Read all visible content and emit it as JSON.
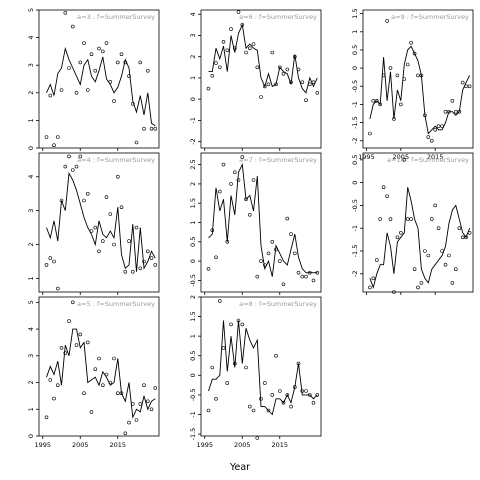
{
  "xlabel": "Year",
  "chart_data": [
    {
      "type": "line",
      "title": "a=3 : f=SummerSurvey",
      "ylim": [
        0,
        5
      ],
      "yticks": [
        0,
        1,
        2,
        3,
        4,
        5
      ],
      "xlim": [
        1994,
        2026
      ],
      "xticks": [
        1995,
        2005,
        2015
      ],
      "line": {
        "x": [
          1996,
          1997,
          1998,
          1999,
          2000,
          2001,
          2002,
          2003,
          2004,
          2005,
          2006,
          2007,
          2008,
          2009,
          2010,
          2011,
          2012,
          2013,
          2014,
          2015,
          2016,
          2017,
          2018,
          2019,
          2020,
          2021,
          2022,
          2023,
          2024,
          2025
        ],
        "y": [
          2.0,
          2.3,
          1.9,
          2.7,
          2.9,
          3.6,
          3.2,
          2.9,
          2.6,
          2.3,
          3.0,
          3.2,
          2.6,
          2.4,
          2.8,
          3.3,
          2.5,
          2.3,
          2.0,
          2.2,
          2.6,
          3.2,
          2.9,
          1.7,
          1.3,
          1.9,
          1.2,
          2.0,
          0.9,
          0.8
        ]
      },
      "points": {
        "x": [
          1996,
          1997,
          1998,
          1999,
          2000,
          2001,
          2002,
          2003,
          2004,
          2005,
          2006,
          2007,
          2008,
          2009,
          2010,
          2011,
          2012,
          2013,
          2014,
          2015,
          2016,
          2017,
          2018,
          2019,
          2020,
          2021,
          2022,
          2023,
          2024,
          2025
        ],
        "y": [
          0.4,
          1.9,
          0.1,
          0.4,
          2.1,
          4.9,
          2.9,
          4.4,
          2.0,
          3.1,
          3.8,
          2.1,
          3.4,
          2.8,
          3.6,
          3.5,
          3.8,
          2.4,
          1.7,
          3.1,
          3.4,
          3.1,
          2.6,
          1.6,
          0.2,
          3.1,
          0.7,
          2.8,
          0.7,
          0.7
        ]
      }
    },
    {
      "type": "line",
      "title": "a=6 : f=SummerSurvey",
      "ylim": [
        -2.3,
        4.2
      ],
      "yticks": [
        -2,
        -1,
        0,
        1,
        2,
        3,
        4
      ],
      "xlim": [
        1994,
        2026
      ],
      "xticks": [
        1995,
        2005,
        2015
      ],
      "line": {
        "x": [
          1996,
          1997,
          1998,
          1999,
          2000,
          2001,
          2002,
          2003,
          2004,
          2005,
          2006,
          2007,
          2008,
          2009,
          2010,
          2011,
          2012,
          2013,
          2014,
          2015,
          2016,
          2017,
          2018,
          2019,
          2020,
          2021,
          2022,
          2023,
          2024,
          2025
        ],
        "y": [
          1.3,
          1.3,
          2.4,
          1.9,
          2.5,
          1.3,
          3.0,
          2.2,
          3.1,
          3.5,
          2.4,
          2.6,
          2.4,
          2.3,
          1.0,
          0.6,
          1.2,
          0.6,
          0.7,
          1.5,
          1.3,
          1.2,
          0.7,
          2.1,
          1.0,
          0.5,
          0.3,
          1.0,
          0.6,
          1.0
        ]
      },
      "points": {
        "x": [
          1996,
          1997,
          1998,
          1999,
          2000,
          2001,
          2002,
          2003,
          2004,
          2005,
          2006,
          2007,
          2008,
          2009,
          2010,
          2011,
          2012,
          2013,
          2014,
          2015,
          2016,
          2017,
          2018,
          2019,
          2020,
          2021,
          2022,
          2023,
          2024,
          2025
        ],
        "y": [
          0.5,
          1.1,
          1.7,
          1.5,
          2.7,
          2.3,
          3.3,
          2.4,
          4.1,
          3.5,
          2.2,
          2.4,
          2.6,
          1.5,
          0.1,
          0.6,
          0.7,
          2.2,
          0.7,
          1.5,
          1.2,
          1.4,
          0.8,
          2.0,
          1.4,
          0.8,
          -0.05,
          0.7,
          0.8,
          0.3
        ]
      }
    },
    {
      "type": "line",
      "title": "a=9 : f=SummerSurvey",
      "ylim": [
        -2.2,
        1.6
      ],
      "yticks": [
        -2,
        -1.5,
        -1,
        -0.5,
        0,
        0.5,
        1,
        1.5
      ],
      "xlim": [
        1994,
        2026
      ],
      "xticks": [
        1995,
        2005,
        2015
      ],
      "line": {
        "x": [
          1996,
          1997,
          1998,
          1999,
          2000,
          2001,
          2002,
          2003,
          2004,
          2005,
          2006,
          2007,
          2008,
          2009,
          2010,
          2011,
          2012,
          2013,
          2014,
          2015,
          2016,
          2017,
          2018,
          2019,
          2020,
          2021,
          2022,
          2023,
          2024,
          2025
        ],
        "y": [
          -1.4,
          -1.0,
          -0.9,
          -1.0,
          0.3,
          -0.9,
          -0.1,
          -1.4,
          -0.6,
          -0.9,
          0.1,
          0.5,
          0.6,
          0.4,
          0.2,
          -0.2,
          -1.3,
          -1.8,
          -1.7,
          -1.6,
          -1.7,
          -1.7,
          -1.5,
          -1.2,
          -1.2,
          -1.3,
          -1.2,
          -0.6,
          -0.4,
          -0.2
        ]
      },
      "points": {
        "x": [
          1996,
          1997,
          1998,
          1999,
          2000,
          2001,
          2002,
          2003,
          2004,
          2005,
          2006,
          2007,
          2008,
          2009,
          2010,
          2011,
          2012,
          2013,
          2014,
          2015,
          2016,
          2017,
          2018,
          2019,
          2020,
          2021,
          2022,
          2023,
          2024,
          2025
        ],
        "y": [
          -1.8,
          -0.9,
          -0.9,
          -1.0,
          -0.2,
          1.3,
          0.0,
          -1.4,
          -0.2,
          -1.0,
          -0.3,
          0.1,
          0.7,
          0.4,
          -0.2,
          -0.2,
          -1.3,
          -1.9,
          -2.0,
          -1.7,
          -1.6,
          -1.6,
          -1.2,
          -1.2,
          -0.9,
          -1.2,
          -1.2,
          -0.4,
          -0.5,
          -0.5
        ]
      }
    },
    {
      "type": "line",
      "title": "a=4 : f=SummerSurvey",
      "ylim": [
        0.6,
        4.7
      ],
      "yticks": [
        1,
        2,
        3,
        4
      ],
      "xlim": [
        1994,
        2026
      ],
      "xticks": [
        1995,
        2005,
        2015
      ],
      "line": {
        "x": [
          1996,
          1997,
          1998,
          1999,
          2000,
          2001,
          2002,
          2003,
          2004,
          2005,
          2006,
          2007,
          2008,
          2009,
          2010,
          2011,
          2012,
          2013,
          2014,
          2015,
          2016,
          2017,
          2018,
          2019,
          2020,
          2021,
          2022,
          2023,
          2024,
          2025
        ],
        "y": [
          2.5,
          2.2,
          2.7,
          2.1,
          3.3,
          3.0,
          4.1,
          3.9,
          3.6,
          3.2,
          2.8,
          2.5,
          2.3,
          2.0,
          2.7,
          2.3,
          2.2,
          2.4,
          2.2,
          3.1,
          1.7,
          1.3,
          1.4,
          2.6,
          1.2,
          2.5,
          1.3,
          1.5,
          1.8,
          1.6
        ]
      },
      "points": {
        "x": [
          1996,
          1997,
          1998,
          1999,
          2000,
          2001,
          2002,
          2003,
          2004,
          2005,
          2006,
          2007,
          2008,
          2009,
          2010,
          2011,
          2012,
          2013,
          2014,
          2015,
          2016,
          2017,
          2018,
          2019,
          2020,
          2021,
          2022,
          2023,
          2024,
          2025
        ],
        "y": [
          1.4,
          1.6,
          1.5,
          0.7,
          3.3,
          4.3,
          4.6,
          4.2,
          4.3,
          4.6,
          3.3,
          3.5,
          2.4,
          2.5,
          1.8,
          2.1,
          3.4,
          2.9,
          2.0,
          4.0,
          3.1,
          1.2,
          2.1,
          1.2,
          2.5,
          1.3,
          1.5,
          1.8,
          1.6,
          1.4
        ]
      }
    },
    {
      "type": "line",
      "title": "a=7 : f=SummerSurvey",
      "ylim": [
        -0.8,
        2.8
      ],
      "yticks": [
        -0.5,
        0,
        0.5,
        1,
        1.5,
        2,
        2.5
      ],
      "xlim": [
        1994,
        2026
      ],
      "xticks": [
        1995,
        2005,
        2015
      ],
      "line": {
        "x": [
          1996,
          1997,
          1998,
          1999,
          2000,
          2001,
          2002,
          2003,
          2004,
          2005,
          2006,
          2007,
          2008,
          2009,
          2010,
          2011,
          2012,
          2013,
          2014,
          2015,
          2016,
          2017,
          2018,
          2019,
          2020,
          2021,
          2022,
          2023,
          2024,
          2025
        ],
        "y": [
          0.6,
          0.7,
          1.9,
          1.3,
          1.6,
          0.5,
          1.7,
          1.2,
          2.3,
          2.5,
          1.6,
          1.7,
          1.3,
          2.2,
          0.4,
          -0.2,
          0.0,
          -0.4,
          0.4,
          0.2,
          0.0,
          -0.1,
          0.3,
          0.7,
          0.1,
          -0.2,
          -0.3,
          -0.3,
          -0.3,
          -0.3
        ]
      },
      "points": {
        "x": [
          1996,
          1997,
          1998,
          1999,
          2000,
          2001,
          2002,
          2003,
          2004,
          2005,
          2006,
          2007,
          2008,
          2009,
          2010,
          2011,
          2012,
          2013,
          2014,
          2015,
          2016,
          2017,
          2018,
          2019,
          2020,
          2021,
          2022,
          2023,
          2024,
          2025
        ],
        "y": [
          -0.2,
          0.8,
          0.1,
          1.8,
          2.5,
          0.5,
          2.0,
          2.3,
          2.1,
          2.7,
          1.6,
          1.2,
          2.1,
          -0.4,
          0.0,
          -0.1,
          0.2,
          0.5,
          0.3,
          0.0,
          -0.6,
          1.1,
          0.7,
          0.2,
          -0.3,
          -0.4,
          -0.4,
          -0.3,
          -0.5,
          -0.3
        ]
      }
    },
    {
      "type": "line",
      "title": "a=10 : f=SummerSurvey",
      "ylim": [
        -2.4,
        0.65
      ],
      "yticks": [
        -2,
        -1.5,
        -1,
        -0.5,
        0,
        0.5
      ],
      "xlim": [
        1994,
        2026
      ],
      "xticks": [
        1995,
        2005,
        2015
      ],
      "line": {
        "x": [
          1996,
          1997,
          1998,
          1999,
          2000,
          2001,
          2002,
          2003,
          2004,
          2005,
          2006,
          2007,
          2008,
          2009,
          2010,
          2011,
          2012,
          2013,
          2014,
          2015,
          2016,
          2017,
          2018,
          2019,
          2020,
          2021,
          2022,
          2023,
          2024,
          2025
        ],
        "y": [
          -2.1,
          -2.3,
          -2.0,
          -1.8,
          -1.8,
          -1.1,
          -1.4,
          -2.0,
          -1.3,
          -1.2,
          -1.1,
          -0.1,
          -0.4,
          -0.8,
          -1.0,
          -1.9,
          -2.1,
          -2.2,
          -1.9,
          -1.8,
          -1.7,
          -1.6,
          -1.4,
          -0.9,
          -0.6,
          -0.5,
          -0.8,
          -1.1,
          -1.2,
          -1.0
        ]
      },
      "points": {
        "x": [
          1996,
          1997,
          1998,
          1999,
          2000,
          2001,
          2002,
          2003,
          2004,
          2005,
          2006,
          2007,
          2008,
          2009,
          2010,
          2011,
          2012,
          2013,
          2014,
          2015,
          2016,
          2017,
          2018,
          2019,
          2020,
          2021,
          2022,
          2023,
          2024,
          2025
        ],
        "y": [
          -2.3,
          -2.1,
          -1.7,
          -0.8,
          -0.1,
          -0.3,
          -0.8,
          -2.4,
          -1.2,
          -1.1,
          0.5,
          -0.8,
          -0.8,
          -1.9,
          -2.3,
          -2.2,
          -1.5,
          -1.6,
          -0.8,
          -0.5,
          -1.0,
          -1.5,
          -1.8,
          -1.6,
          -2.2,
          -1.9,
          -1.0,
          -1.2,
          -1.2,
          -1.1
        ]
      }
    },
    {
      "type": "line",
      "title": "a=5 : f=SummerSurvey",
      "ylim": [
        0,
        5.2
      ],
      "yticks": [
        0,
        1,
        2,
        3,
        4,
        5
      ],
      "xlim": [
        1994,
        2026
      ],
      "xticks": [
        1995,
        2005,
        2015
      ],
      "line": {
        "x": [
          1996,
          1997,
          1998,
          1999,
          2000,
          2001,
          2002,
          2003,
          2004,
          2005,
          2006,
          2007,
          2008,
          2009,
          2010,
          2011,
          2012,
          2013,
          2014,
          2015,
          2016,
          2017,
          2018,
          2019,
          2020,
          2021,
          2022,
          2023,
          2024,
          2025
        ],
        "y": [
          2.2,
          2.6,
          2.3,
          2.8,
          1.9,
          3.4,
          3.0,
          4.0,
          4.0,
          3.3,
          3.5,
          2.0,
          2.1,
          2.2,
          1.9,
          2.4,
          2.2,
          1.9,
          2.0,
          2.9,
          1.6,
          1.3,
          2.0,
          0.7,
          1.0,
          0.9,
          1.5,
          1.0,
          1.3,
          1.4
        ]
      },
      "points": {
        "x": [
          1996,
          1997,
          1998,
          1999,
          2000,
          2001,
          2002,
          2003,
          2004,
          2005,
          2006,
          2007,
          2008,
          2009,
          2010,
          2011,
          2012,
          2013,
          2014,
          2015,
          2016,
          2017,
          2018,
          2019,
          2020,
          2021,
          2022,
          2023,
          2024,
          2025
        ],
        "y": [
          0.7,
          2.1,
          1.4,
          1.9,
          3.3,
          3.1,
          4.3,
          5.0,
          3.4,
          3.8,
          1.6,
          3.5,
          0.9,
          2.5,
          2.9,
          1.9,
          2.3,
          2.0,
          2.9,
          1.6,
          1.6,
          0.1,
          0.5,
          1.2,
          0.6,
          1.2,
          1.9,
          1.3,
          1.0,
          1.8
        ]
      }
    },
    {
      "type": "line",
      "title": "a=8 : f=SummerSurvey",
      "ylim": [
        -1.55,
        2.0
      ],
      "yticks": [
        -1.5,
        -1,
        -0.5,
        0,
        0.5,
        1,
        1.5,
        2
      ],
      "xlim": [
        1994,
        2026
      ],
      "xticks": [
        1995,
        2005,
        2015
      ],
      "line": {
        "x": [
          1996,
          1997,
          1998,
          1999,
          2000,
          2001,
          2002,
          2003,
          2004,
          2005,
          2006,
          2007,
          2008,
          2009,
          2010,
          2011,
          2012,
          2013,
          2014,
          2015,
          2016,
          2017,
          2018,
          2019,
          2020,
          2021,
          2022,
          2023,
          2024,
          2025
        ],
        "y": [
          -0.4,
          -0.1,
          -0.1,
          0.0,
          1.4,
          0.1,
          1.0,
          0.2,
          1.4,
          0.3,
          1.2,
          0.9,
          0.7,
          0.9,
          -0.8,
          -0.8,
          -0.9,
          -1.0,
          -0.6,
          -0.6,
          -0.7,
          -0.5,
          -0.7,
          -0.3,
          0.3,
          -0.5,
          -0.5,
          -0.5,
          -0.6,
          -0.5
        ]
      },
      "points": {
        "x": [
          1996,
          1997,
          1998,
          1999,
          2000,
          2001,
          2002,
          2003,
          2004,
          2005,
          2006,
          2007,
          2008,
          2009,
          2010,
          2011,
          2012,
          2013,
          2014,
          2015,
          2016,
          2017,
          2018,
          2019,
          2020,
          2021,
          2022,
          2023,
          2024,
          2025
        ],
        "y": [
          -0.9,
          0.2,
          -0.6,
          1.9,
          0.7,
          -0.2,
          1.3,
          0.3,
          1.4,
          1.3,
          0.2,
          -0.8,
          -0.9,
          -1.6,
          -0.6,
          -0.2,
          -0.9,
          -0.5,
          0.5,
          -0.4,
          -0.7,
          -0.5,
          -0.8,
          -0.3,
          0.3,
          -0.4,
          -0.4,
          -0.5,
          -0.7,
          -0.5
        ]
      }
    }
  ]
}
